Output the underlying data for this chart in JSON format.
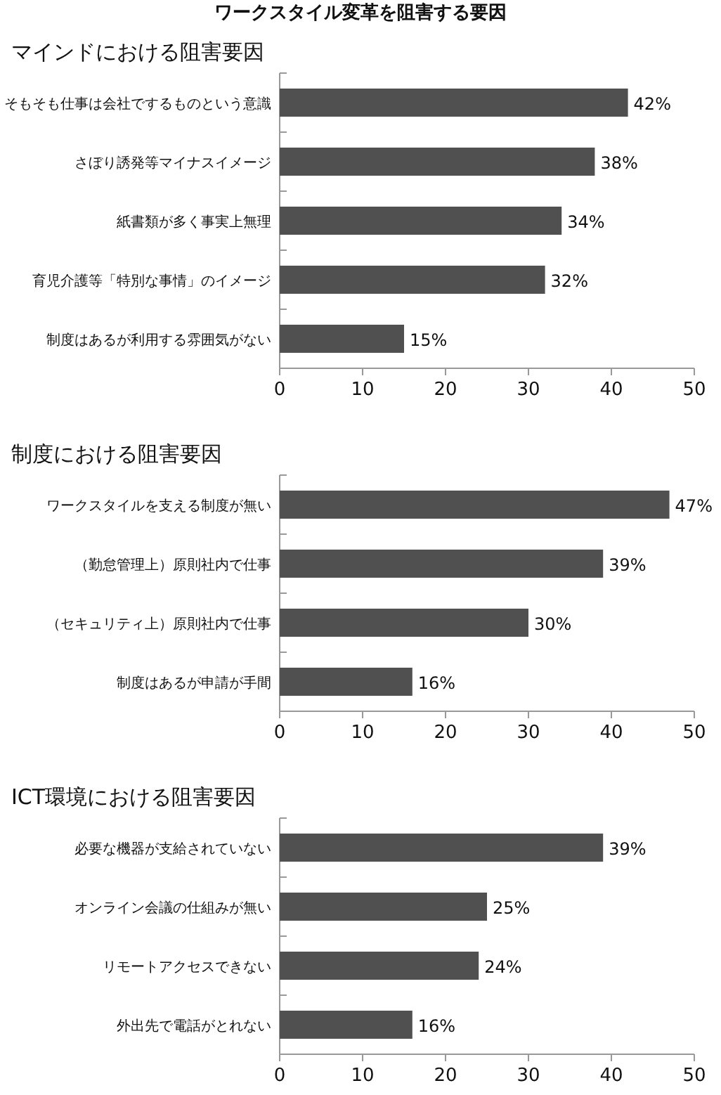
{
  "chart_data": [
    {
      "type": "bar",
      "orientation": "horizontal",
      "title": "ワークスタイル変革を阻害する要因",
      "subtitle": "マインドにおける阻害要因",
      "categories": [
        "そもそも仕事は会社でするものという意識",
        "さぼり誘発等マイナスイメージ",
        "紙書類が多く事実上無理",
        "育児介護等「特別な事情」のイメージ",
        "制度はあるが利用する雰囲気がない"
      ],
      "values": [
        42,
        38,
        34,
        32,
        15
      ],
      "value_labels": [
        "42%",
        "38%",
        "34%",
        "32%",
        "15%"
      ],
      "color": "#505050",
      "xlim": [
        0,
        50
      ],
      "xticks": [
        0,
        10,
        20,
        30,
        40,
        50
      ]
    },
    {
      "type": "bar",
      "orientation": "horizontal",
      "title": "制度における阻害要因",
      "categories": [
        "ワークスタイルを支える制度が無い",
        "（勤怠管理上）原則社内で仕事",
        "（セキュリティ上）原則社内で仕事",
        "制度はあるが申請が手間"
      ],
      "values": [
        47,
        39,
        30,
        16
      ],
      "value_labels": [
        "47%",
        "39%",
        "30%",
        "16%"
      ],
      "color": "#505050",
      "xlim": [
        0,
        50
      ],
      "xticks": [
        0,
        10,
        20,
        30,
        40,
        50
      ]
    },
    {
      "type": "bar",
      "orientation": "horizontal",
      "title": "ICT環境における阻害要因",
      "categories": [
        "必要な機器が支給されていない",
        "オンライン会議の仕組みが無い",
        "リモートアクセスできない",
        "外出先で電話がとれない"
      ],
      "values": [
        39,
        25,
        24,
        16
      ],
      "value_labels": [
        "39%",
        "25%",
        "24%",
        "16%"
      ],
      "color": "#505050",
      "xlim": [
        0,
        50
      ],
      "xticks": [
        0,
        10,
        20,
        30,
        40,
        50
      ]
    }
  ]
}
